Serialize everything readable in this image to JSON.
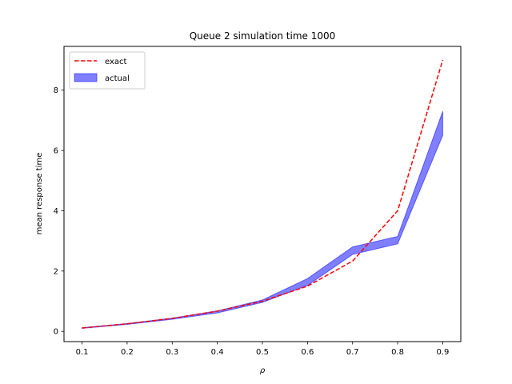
{
  "chart_data": {
    "type": "line",
    "title": "Queue 2 simulation time 1000",
    "xlabel": "ρ",
    "ylabel": "mean response time",
    "x": [
      0.1,
      0.2,
      0.3,
      0.4,
      0.5,
      0.6,
      0.7,
      0.8,
      0.9
    ],
    "xticks": [
      "0.1",
      "0.2",
      "0.3",
      "0.4",
      "0.5",
      "0.6",
      "0.7",
      "0.8",
      "0.9"
    ],
    "yticks": [
      0,
      2,
      4,
      6,
      8
    ],
    "xlim": [
      0.06,
      0.94
    ],
    "ylim": [
      -0.34,
      9.45
    ],
    "grid": false,
    "legend_position": "top-left",
    "series": [
      {
        "name": "exact",
        "kind": "line",
        "style": "dashed",
        "color": "#ff0000",
        "values": [
          0.11,
          0.25,
          0.43,
          0.67,
          1.0,
          1.5,
          2.33,
          4.0,
          9.0
        ]
      },
      {
        "name": "actual",
        "kind": "band",
        "color": "#0000ff",
        "lower": [
          0.1,
          0.23,
          0.4,
          0.61,
          0.96,
          1.52,
          2.55,
          2.9,
          6.5
        ],
        "upper": [
          0.12,
          0.26,
          0.44,
          0.68,
          1.04,
          1.75,
          2.8,
          3.15,
          7.3
        ]
      }
    ]
  }
}
